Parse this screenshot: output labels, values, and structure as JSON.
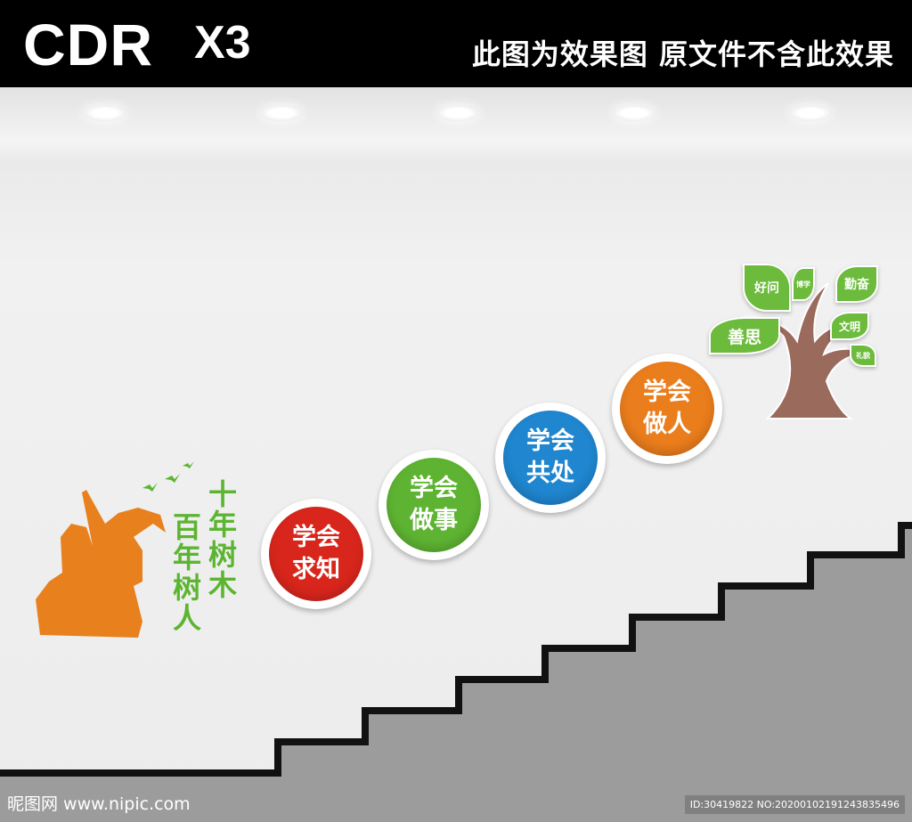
{
  "header": {
    "logo": "CDR",
    "version": "X3",
    "notice": "此图为效果图 原文件不含此效果"
  },
  "slogan": {
    "col1": "十年树木",
    "col2": "百年树人"
  },
  "circles": [
    {
      "line1": "学会",
      "line2": "求知",
      "color": "#d9261c"
    },
    {
      "line1": "学会",
      "line2": "做事",
      "color": "#5eb432"
    },
    {
      "line1": "学会",
      "line2": "共处",
      "color": "#1f86cf"
    },
    {
      "line1": "学会",
      "line2": "做人",
      "color": "#ea7d1c"
    }
  ],
  "tree": {
    "leaves": [
      "好问",
      "博学",
      "勤奋",
      "善思",
      "文明",
      "礼貌"
    ],
    "leaf_color": "#6cbb3c",
    "trunk_color": "#9a6a5c"
  },
  "figure_color": "#e8801e",
  "footer": {
    "watermark": "昵图网 www.nipic.com",
    "id": "ID:30419822 NO:20200102191243835496"
  }
}
